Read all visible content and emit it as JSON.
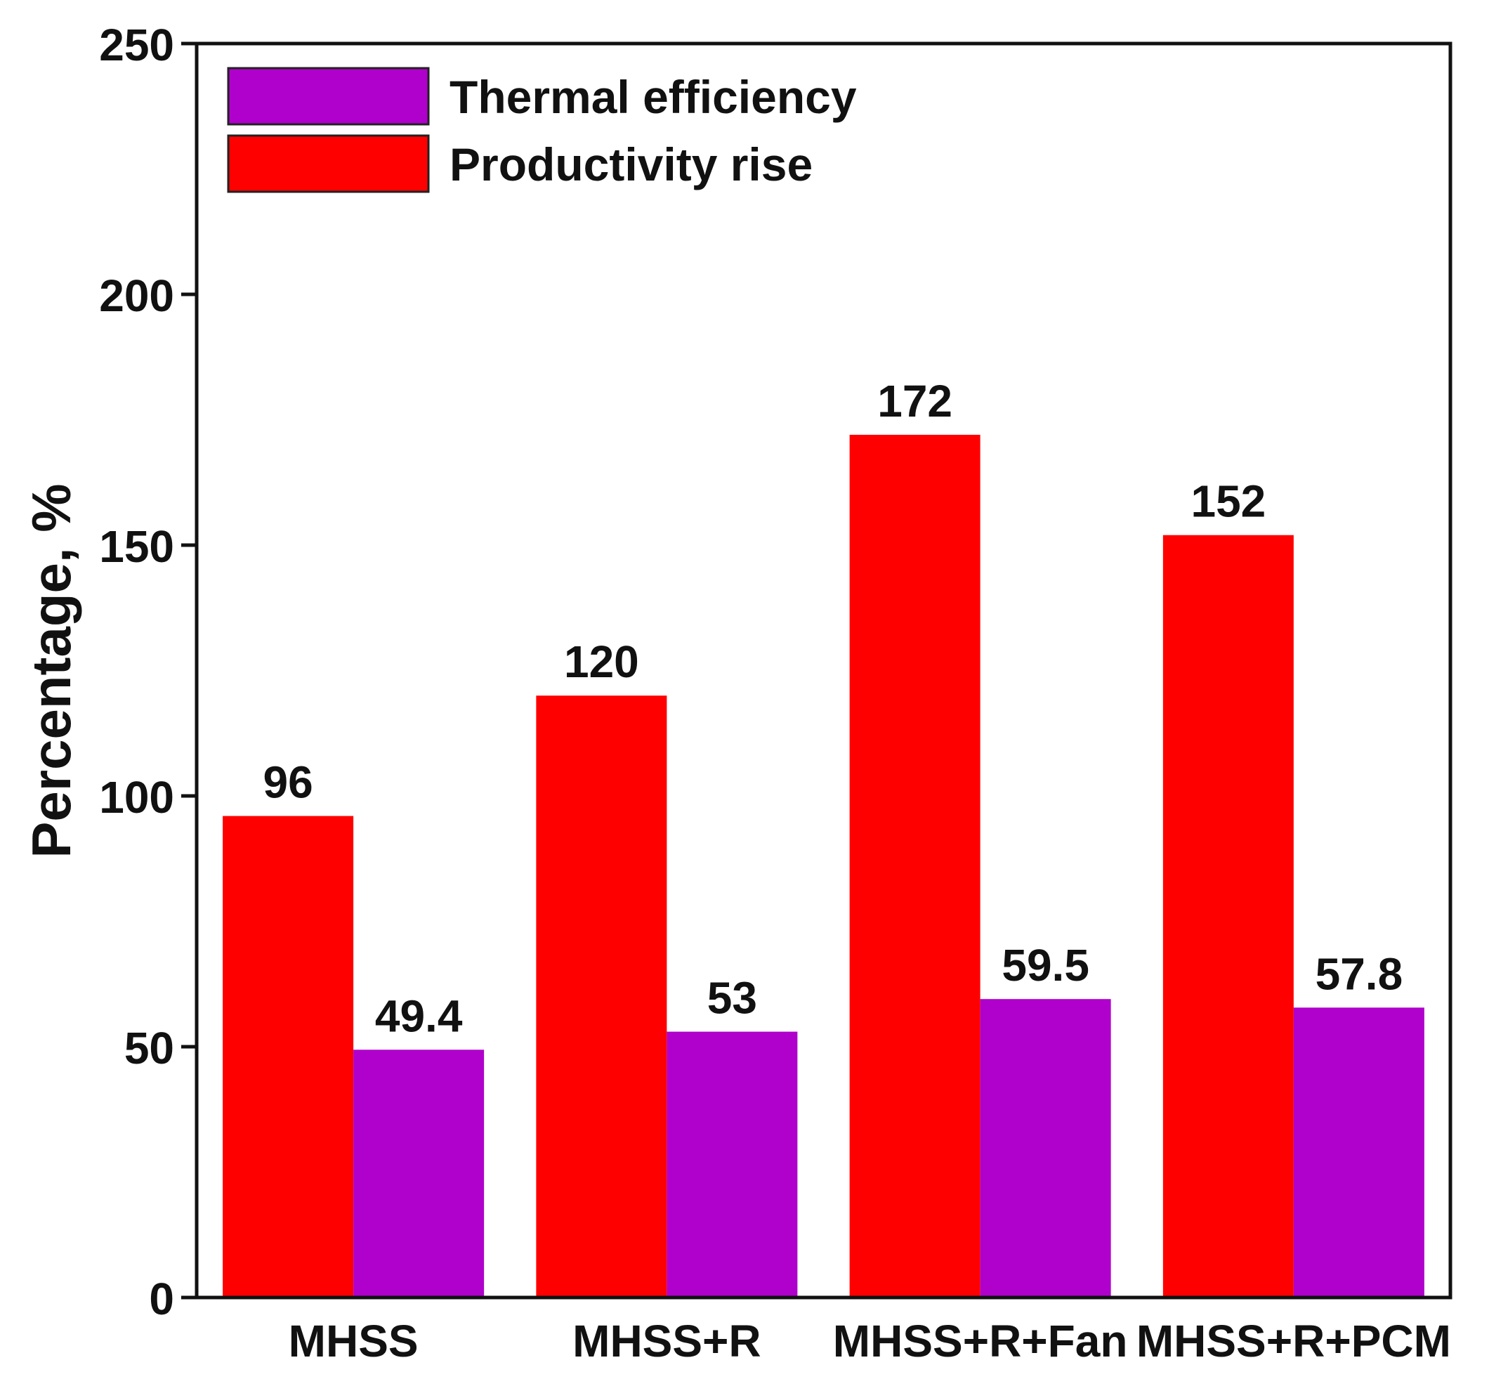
{
  "chart_data": {
    "type": "bar",
    "title": "",
    "xlabel": "",
    "ylabel": "Percentage, %",
    "ylim": [
      0,
      250
    ],
    "yticks": [
      0,
      50,
      100,
      150,
      200,
      250
    ],
    "categories": [
      "MHSS",
      "MHSS+R",
      "MHSS+R+Fan",
      "MHSS+R+PCM"
    ],
    "series": [
      {
        "name": "Productivity rise",
        "color": "#ff0000",
        "values": [
          96,
          120,
          172,
          152
        ],
        "labels": [
          "96",
          "120",
          "172",
          "152"
        ]
      },
      {
        "name": "Thermal efficiency",
        "color": "#b000cc",
        "values": [
          49.4,
          53,
          59.5,
          57.8
        ],
        "labels": [
          "49.4",
          "53",
          "59.5",
          "57.8"
        ]
      }
    ],
    "legend": {
      "position": "top-left",
      "entries": [
        {
          "label": "Thermal efficiency",
          "color": "#b000cc"
        },
        {
          "label": "Productivity rise",
          "color": "#ff0000"
        }
      ]
    },
    "grid": false
  }
}
